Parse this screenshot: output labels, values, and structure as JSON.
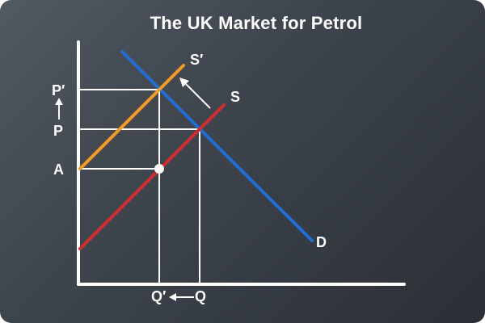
{
  "title": "The UK Market for Petrol",
  "labels": {
    "p_prime": "P′",
    "p": "P",
    "a": "A",
    "q_prime": "Q′",
    "q": "Q",
    "s_prime": "S′",
    "s": "S",
    "d": "D"
  },
  "colors": {
    "demand": "#1f6fd6",
    "supply": "#d02e2e",
    "supply_shifted": "#f39a22",
    "axes": "#ffffff",
    "guides": "#ffffff"
  }
}
